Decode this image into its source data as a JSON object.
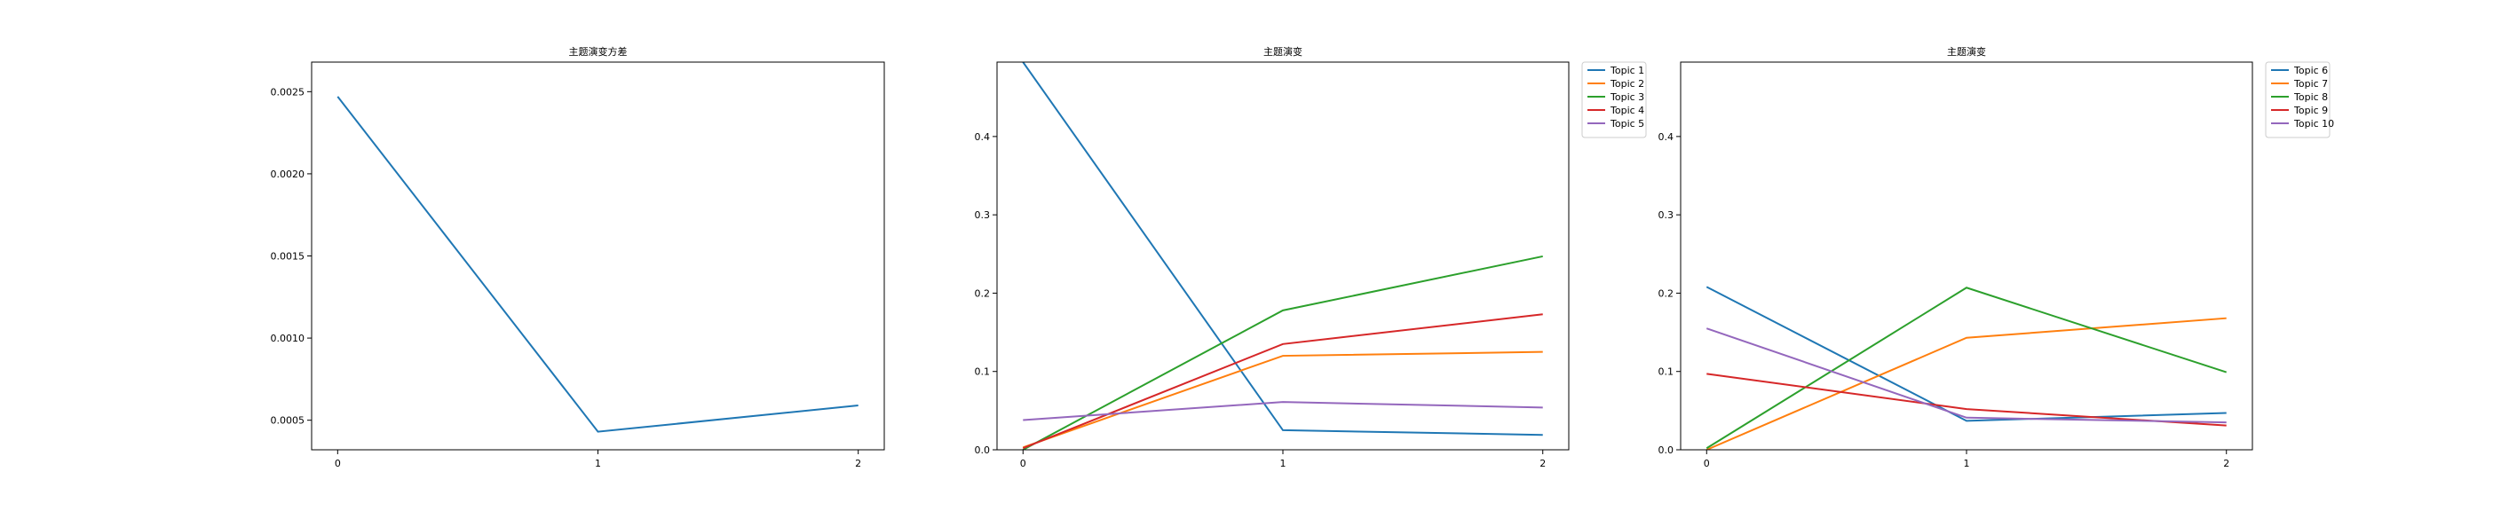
{
  "chart_data": [
    {
      "type": "line",
      "title": "主题演变方差",
      "x": [
        0,
        1,
        2
      ],
      "xticks": [
        "0",
        "1",
        "2"
      ],
      "yticks": [
        "0.0005",
        "0.0010",
        "0.0015",
        "0.0020",
        "0.0025"
      ],
      "ylim": [
        0.00032,
        0.00268
      ],
      "xlim": [
        -0.1,
        2.1
      ],
      "legend": "none",
      "series": [
        {
          "values": [
            0.00247,
            0.00043,
            0.00059
          ],
          "color": "#1f77b4"
        }
      ]
    },
    {
      "type": "line",
      "title": "主题演变",
      "x": [
        0,
        1,
        2
      ],
      "xticks": [
        "0",
        "1",
        "2"
      ],
      "yticks": [
        "0.0",
        "0.1",
        "0.2",
        "0.3",
        "0.4"
      ],
      "ylim": [
        0.0,
        0.495
      ],
      "xlim": [
        -0.1,
        2.1
      ],
      "legend": "outside-top-right",
      "series": [
        {
          "name": "Topic 1",
          "values": [
            0.495,
            0.025,
            0.019
          ],
          "color": "#1f77b4"
        },
        {
          "name": "Topic 2",
          "values": [
            0.003,
            0.12,
            0.125
          ],
          "color": "#ff7f0e"
        },
        {
          "name": "Topic 3",
          "values": [
            0.0,
            0.178,
            0.247
          ],
          "color": "#2ca02c"
        },
        {
          "name": "Topic 4",
          "values": [
            0.002,
            0.135,
            0.173
          ],
          "color": "#d62728"
        },
        {
          "name": "Topic 5",
          "values": [
            0.038,
            0.061,
            0.054
          ],
          "color": "#9467bd"
        }
      ]
    },
    {
      "type": "line",
      "title": "主题演变",
      "x": [
        0,
        1,
        2
      ],
      "xticks": [
        "0",
        "1",
        "2"
      ],
      "yticks": [
        "0.0",
        "0.1",
        "0.2",
        "0.3",
        "0.4"
      ],
      "ylim": [
        0.0,
        0.495
      ],
      "xlim": [
        -0.1,
        2.1
      ],
      "legend": "outside-top-right",
      "series": [
        {
          "name": "Topic 6",
          "values": [
            0.208,
            0.037,
            0.047
          ],
          "color": "#1f77b4"
        },
        {
          "name": "Topic 7",
          "values": [
            0.0,
            0.143,
            0.168
          ],
          "color": "#ff7f0e"
        },
        {
          "name": "Topic 8",
          "values": [
            0.002,
            0.207,
            0.099
          ],
          "color": "#2ca02c"
        },
        {
          "name": "Topic 9",
          "values": [
            0.097,
            0.052,
            0.031
          ],
          "color": "#d62728"
        },
        {
          "name": "Topic 10",
          "values": [
            0.155,
            0.041,
            0.035
          ],
          "color": "#9467bd"
        }
      ]
    }
  ]
}
